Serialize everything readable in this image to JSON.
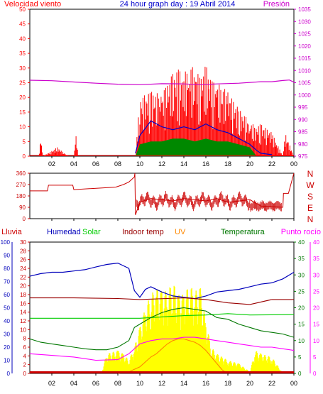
{
  "title": "24 hour graph day : 19 Abril 2014",
  "colors": {
    "wind": "#ff0000",
    "wind_mean": "#0000cc",
    "wind_green": "#008800",
    "pressure": "#cc00cc",
    "direction": "#cc0000",
    "rain": "#cc0000",
    "humidity": "#0000bb",
    "solar": "#ffff00",
    "solar_label": "#00cc00",
    "indoor_temp": "#990000",
    "uv": "#ff8800",
    "temperature": "#007700",
    "dew_point": "#ff00ff",
    "frame": "#000000"
  },
  "chart_data": [
    {
      "type": "line",
      "labels": {
        "left": "Velocidad viento",
        "right": "Presión"
      },
      "x_ticks": [
        "02",
        "04",
        "06",
        "08",
        "10",
        "12",
        "14",
        "16",
        "18",
        "20",
        "22",
        "00"
      ],
      "left_ticks": [
        "0",
        "5",
        "10",
        "15",
        "20",
        "25",
        "30",
        "35",
        "40",
        "45",
        "50"
      ],
      "right_ticks": [
        "975",
        "980",
        "985",
        "990",
        "995",
        "1000",
        "1005",
        "1010",
        "1015",
        "1020",
        "1025",
        "1030",
        "1035"
      ],
      "ylim_left": [
        0,
        50
      ],
      "ylim_right": [
        975,
        1035
      ],
      "series": [
        {
          "key": "pressure",
          "axis": "right",
          "x": [
            0,
            2,
            4,
            6,
            8,
            10,
            12,
            14,
            15.5,
            17,
            19,
            21,
            22,
            23,
            23.6,
            24
          ],
          "values": [
            1006,
            1005.8,
            1005.3,
            1004.8,
            1004.4,
            1004.2,
            1004.6,
            1004.5,
            1004.2,
            1004.5,
            1004.8,
            1005.4,
            1005.4,
            1005.9,
            1006.1,
            1005.2
          ]
        },
        {
          "key": "wind_mean",
          "axis": "left",
          "x": [
            9.6,
            10,
            11,
            12,
            13,
            14,
            15,
            16,
            17,
            18,
            19,
            20,
            20.6,
            21,
            22
          ],
          "values": [
            1,
            7,
            12,
            10,
            9,
            10,
            9,
            11,
            9,
            8,
            6,
            4,
            2,
            1,
            0.5
          ]
        }
      ],
      "gust_envelope": {
        "x": [
          0,
          0.8,
          1.0,
          1.2,
          2.5,
          3.5,
          4.0,
          4.2,
          4.4,
          9.6,
          10,
          11,
          12,
          12.5,
          13,
          13.5,
          14,
          14.5,
          15,
          15.5,
          16,
          16.5,
          17,
          18,
          19,
          20,
          20.5,
          21,
          22,
          23,
          23.2,
          24
        ],
        "values": [
          0,
          0,
          6,
          0,
          3,
          0,
          0,
          7,
          0,
          0,
          20,
          22,
          21,
          25,
          28,
          30,
          28,
          31,
          30,
          27,
          31,
          26,
          25,
          22,
          16,
          12,
          10,
          11,
          8,
          0,
          8,
          0
        ]
      },
      "green_envelope": {
        "x": [
          9.6,
          10,
          11,
          12,
          13,
          14,
          15,
          16,
          17,
          18,
          19,
          20,
          20.6
        ],
        "values": [
          0,
          4,
          5,
          5,
          6,
          6,
          5,
          6,
          5,
          5,
          4,
          3,
          0
        ]
      }
    },
    {
      "type": "line",
      "labels": {
        "right": [
          "N",
          "W",
          "S",
          "E",
          "N"
        ]
      },
      "x_ticks": [
        "02",
        "04",
        "06",
        "08",
        "10",
        "12",
        "14",
        "16",
        "18",
        "20",
        "22",
        "00"
      ],
      "left_ticks": [
        "0",
        "90",
        "180",
        "270",
        "360"
      ],
      "ylim_left": [
        0,
        360
      ],
      "series": [
        {
          "key": "direction",
          "x": [
            0,
            0.01,
            1.6,
            1.7,
            3.9,
            4.0,
            7.8,
            8.5,
            9.0,
            9.5,
            9.55,
            9.6,
            10,
            11,
            12,
            13,
            14,
            15,
            16,
            17,
            18,
            19,
            20,
            21,
            22,
            23,
            23.05,
            23.5,
            24
          ],
          "values": [
            220,
            220,
            220,
            265,
            265,
            230,
            250,
            270,
            290,
            330,
            360,
            30,
            130,
            160,
            150,
            140,
            160,
            150,
            140,
            160,
            130,
            140,
            150,
            100,
            95,
            90,
            200,
            200,
            360
          ]
        }
      ]
    },
    {
      "type": "line",
      "labels": {
        "rain": "Lluvia",
        "humidity": "Humedad",
        "solar": "Solar",
        "indoor_temp": "Indoor temp",
        "uv": "UV",
        "temperature": "Temperatura",
        "dew_point": "Punto rocío"
      },
      "x_ticks": [
        "02",
        "04",
        "06",
        "08",
        "10",
        "12",
        "14",
        "16",
        "18",
        "20",
        "22",
        "00"
      ],
      "axis_humidity": [
        "0",
        "10",
        "20",
        "30",
        "40",
        "50",
        "60",
        "70",
        "80",
        "90",
        "100"
      ],
      "axis_rain": [
        "0",
        "2",
        "4",
        "6",
        "8",
        "10",
        "12",
        "14",
        "16",
        "18",
        "20",
        "22",
        "24",
        "26",
        "28",
        "30"
      ],
      "axis_temperature": [
        "0",
        "5",
        "10",
        "15",
        "20",
        "25",
        "30",
        "35",
        "40"
      ],
      "axis_dew_point": [
        "0",
        "5",
        "10",
        "15",
        "20",
        "25",
        "30",
        "35",
        "40"
      ],
      "ylim_humidity": [
        0,
        100
      ],
      "ylim_temperature": [
        0,
        40
      ],
      "series": [
        {
          "key": "humidity",
          "scale": "humidity",
          "x": [
            0,
            1,
            2,
            3,
            4,
            5,
            6,
            7,
            8,
            9,
            9.5,
            10,
            10.5,
            11,
            12,
            13,
            14,
            15,
            16,
            17,
            18,
            19,
            20,
            21,
            22,
            23,
            24
          ],
          "values": [
            74,
            76,
            77,
            77,
            78,
            79,
            81,
            83,
            84,
            80,
            63,
            58,
            64,
            66,
            62,
            59,
            58,
            57,
            59,
            62,
            63,
            64,
            66,
            68,
            69,
            72,
            77
          ]
        },
        {
          "key": "indoor_temp",
          "scale": "temperature",
          "x": [
            0,
            4,
            8,
            10,
            14,
            16,
            18,
            20,
            22,
            24
          ],
          "values": [
            23,
            23,
            22.8,
            22.5,
            23,
            22.5,
            21.5,
            21,
            22.5,
            22.5
          ]
        },
        {
          "key": "solar",
          "scale": "temperature",
          "x": [
            0,
            8,
            10,
            12,
            14,
            16,
            18,
            20,
            24
          ],
          "values": [
            16.8,
            16.8,
            16.8,
            17.2,
            17.6,
            17.8,
            18.2,
            17.8,
            17.9
          ]
        },
        {
          "key": "temperature",
          "scale": "temperature",
          "x": [
            0,
            1,
            2,
            3,
            4,
            5,
            6,
            7,
            8,
            9,
            9.5,
            10,
            11,
            12,
            13,
            14,
            15,
            16,
            17,
            18,
            19,
            20,
            21,
            22,
            23,
            24
          ],
          "values": [
            10.5,
            9.5,
            9,
            8.5,
            8,
            7.5,
            7.2,
            7.2,
            8,
            10,
            14,
            15,
            17,
            18.5,
            19.5,
            20,
            19.5,
            19,
            17,
            16.5,
            15,
            14,
            13,
            12.5,
            12,
            11
          ]
        },
        {
          "key": "dew_point",
          "scale": "temperature",
          "x": [
            0,
            2,
            4,
            6,
            8,
            9,
            10,
            11,
            12,
            13,
            14,
            15,
            16,
            17,
            18,
            19,
            20,
            21,
            22,
            23,
            24
          ],
          "values": [
            6,
            5.5,
            5,
            4,
            4.2,
            6,
            9,
            10,
            10.5,
            10.5,
            11,
            11,
            10.5,
            10,
            9.5,
            9,
            8.5,
            8,
            8,
            7.5,
            7
          ]
        },
        {
          "key": "solar_area",
          "scale": "temperature",
          "x": [
            6.5,
            7,
            8,
            8.5,
            9,
            9.5,
            10,
            10.5,
            11,
            11.5,
            12,
            12.5,
            13,
            13.5,
            14,
            14.5,
            15,
            15.5,
            16,
            16.5,
            17,
            18,
            19,
            20,
            20.5,
            21,
            22,
            23
          ],
          "values": [
            0,
            6,
            7,
            6,
            4,
            8,
            14,
            20,
            24,
            26,
            25,
            25,
            28,
            24,
            24,
            27,
            25,
            26,
            16,
            8,
            6,
            4,
            3,
            0.5,
            7,
            6,
            5,
            0
          ]
        },
        {
          "key": "uv",
          "scale": "temperature",
          "x": [
            8,
            9,
            10,
            10.5,
            11,
            11.5,
            12,
            12.5,
            13,
            13.5,
            14,
            14.5,
            15,
            15.5,
            16,
            16.5,
            17,
            17.5,
            18
          ],
          "values": [
            0,
            0.5,
            2,
            3.5,
            5,
            6,
            7.5,
            9,
            10,
            10.5,
            10.5,
            10,
            9.5,
            8.5,
            7,
            5,
            3,
            1,
            0
          ]
        },
        {
          "key": "rain",
          "scale": "rain",
          "x": [
            0,
            24
          ],
          "values": [
            0,
            0
          ]
        }
      ]
    }
  ]
}
